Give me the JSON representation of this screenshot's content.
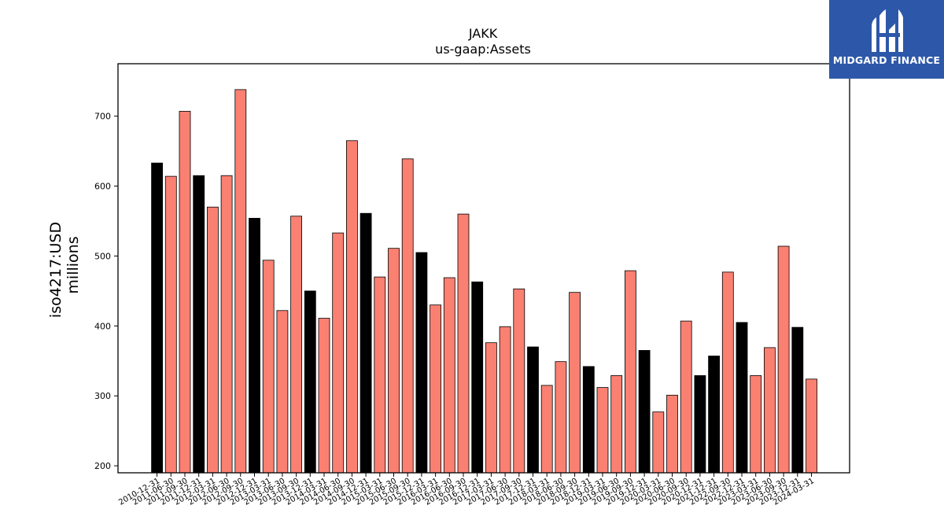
{
  "brand": {
    "name": "MIDGARD FINANCE",
    "bg_color": "#2d58a9"
  },
  "chart_data": {
    "type": "bar",
    "title": "JAKK",
    "subtitle": "us-gaap:Assets",
    "xlabel": "",
    "ylabel": "iso4217:USD",
    "ylabel_unit": "millions",
    "ylim": [
      190,
      775
    ],
    "yticks": [
      200,
      300,
      400,
      500,
      600,
      700
    ],
    "grid": false,
    "colors": {
      "annual": "#000000",
      "quarterly": "#fa8072"
    },
    "categories": [
      "2010-12-31",
      "2011-06-30",
      "2011-09-30",
      "2011-12-31",
      "2012-03-31",
      "2012-06-30",
      "2012-09-30",
      "2012-12-31",
      "2013-03-31",
      "2013-06-30",
      "2013-09-30",
      "2013-12-31",
      "2014-03-31",
      "2014-06-30",
      "2014-09-30",
      "2014-12-31",
      "2015-03-31",
      "2015-06-30",
      "2015-09-30",
      "2015-12-31",
      "2016-03-31",
      "2016-06-30",
      "2016-09-30",
      "2016-12-31",
      "2017-03-31",
      "2017-06-30",
      "2017-09-30",
      "2017-12-31",
      "2018-03-31",
      "2018-06-30",
      "2018-09-30",
      "2018-12-31",
      "2019-03-31",
      "2019-06-30",
      "2019-09-30",
      "2019-12-31",
      "2020-03-31",
      "2020-06-30",
      "2020-09-30",
      "2020-12-31",
      "2021-12-31",
      "2022-09-30",
      "2022-12-31",
      "2023-03-31",
      "2023-06-30",
      "2023-09-30",
      "2023-12-31",
      "2024-03-31"
    ],
    "values": [
      633,
      614,
      707,
      615,
      570,
      615,
      738,
      554,
      494,
      422,
      557,
      450,
      411,
      533,
      665,
      561,
      470,
      511,
      639,
      505,
      430,
      469,
      560,
      463,
      376,
      399,
      453,
      370,
      315,
      349,
      448,
      342,
      312,
      329,
      479,
      365,
      277,
      301,
      407,
      329,
      357,
      477,
      405,
      329,
      369,
      514,
      398,
      324
    ],
    "annual": [
      true,
      false,
      false,
      true,
      false,
      false,
      false,
      true,
      false,
      false,
      false,
      true,
      false,
      false,
      false,
      true,
      false,
      false,
      false,
      true,
      false,
      false,
      false,
      true,
      false,
      false,
      false,
      true,
      false,
      false,
      false,
      true,
      false,
      false,
      false,
      true,
      false,
      false,
      false,
      true,
      true,
      false,
      true,
      false,
      false,
      false,
      true,
      false
    ]
  }
}
